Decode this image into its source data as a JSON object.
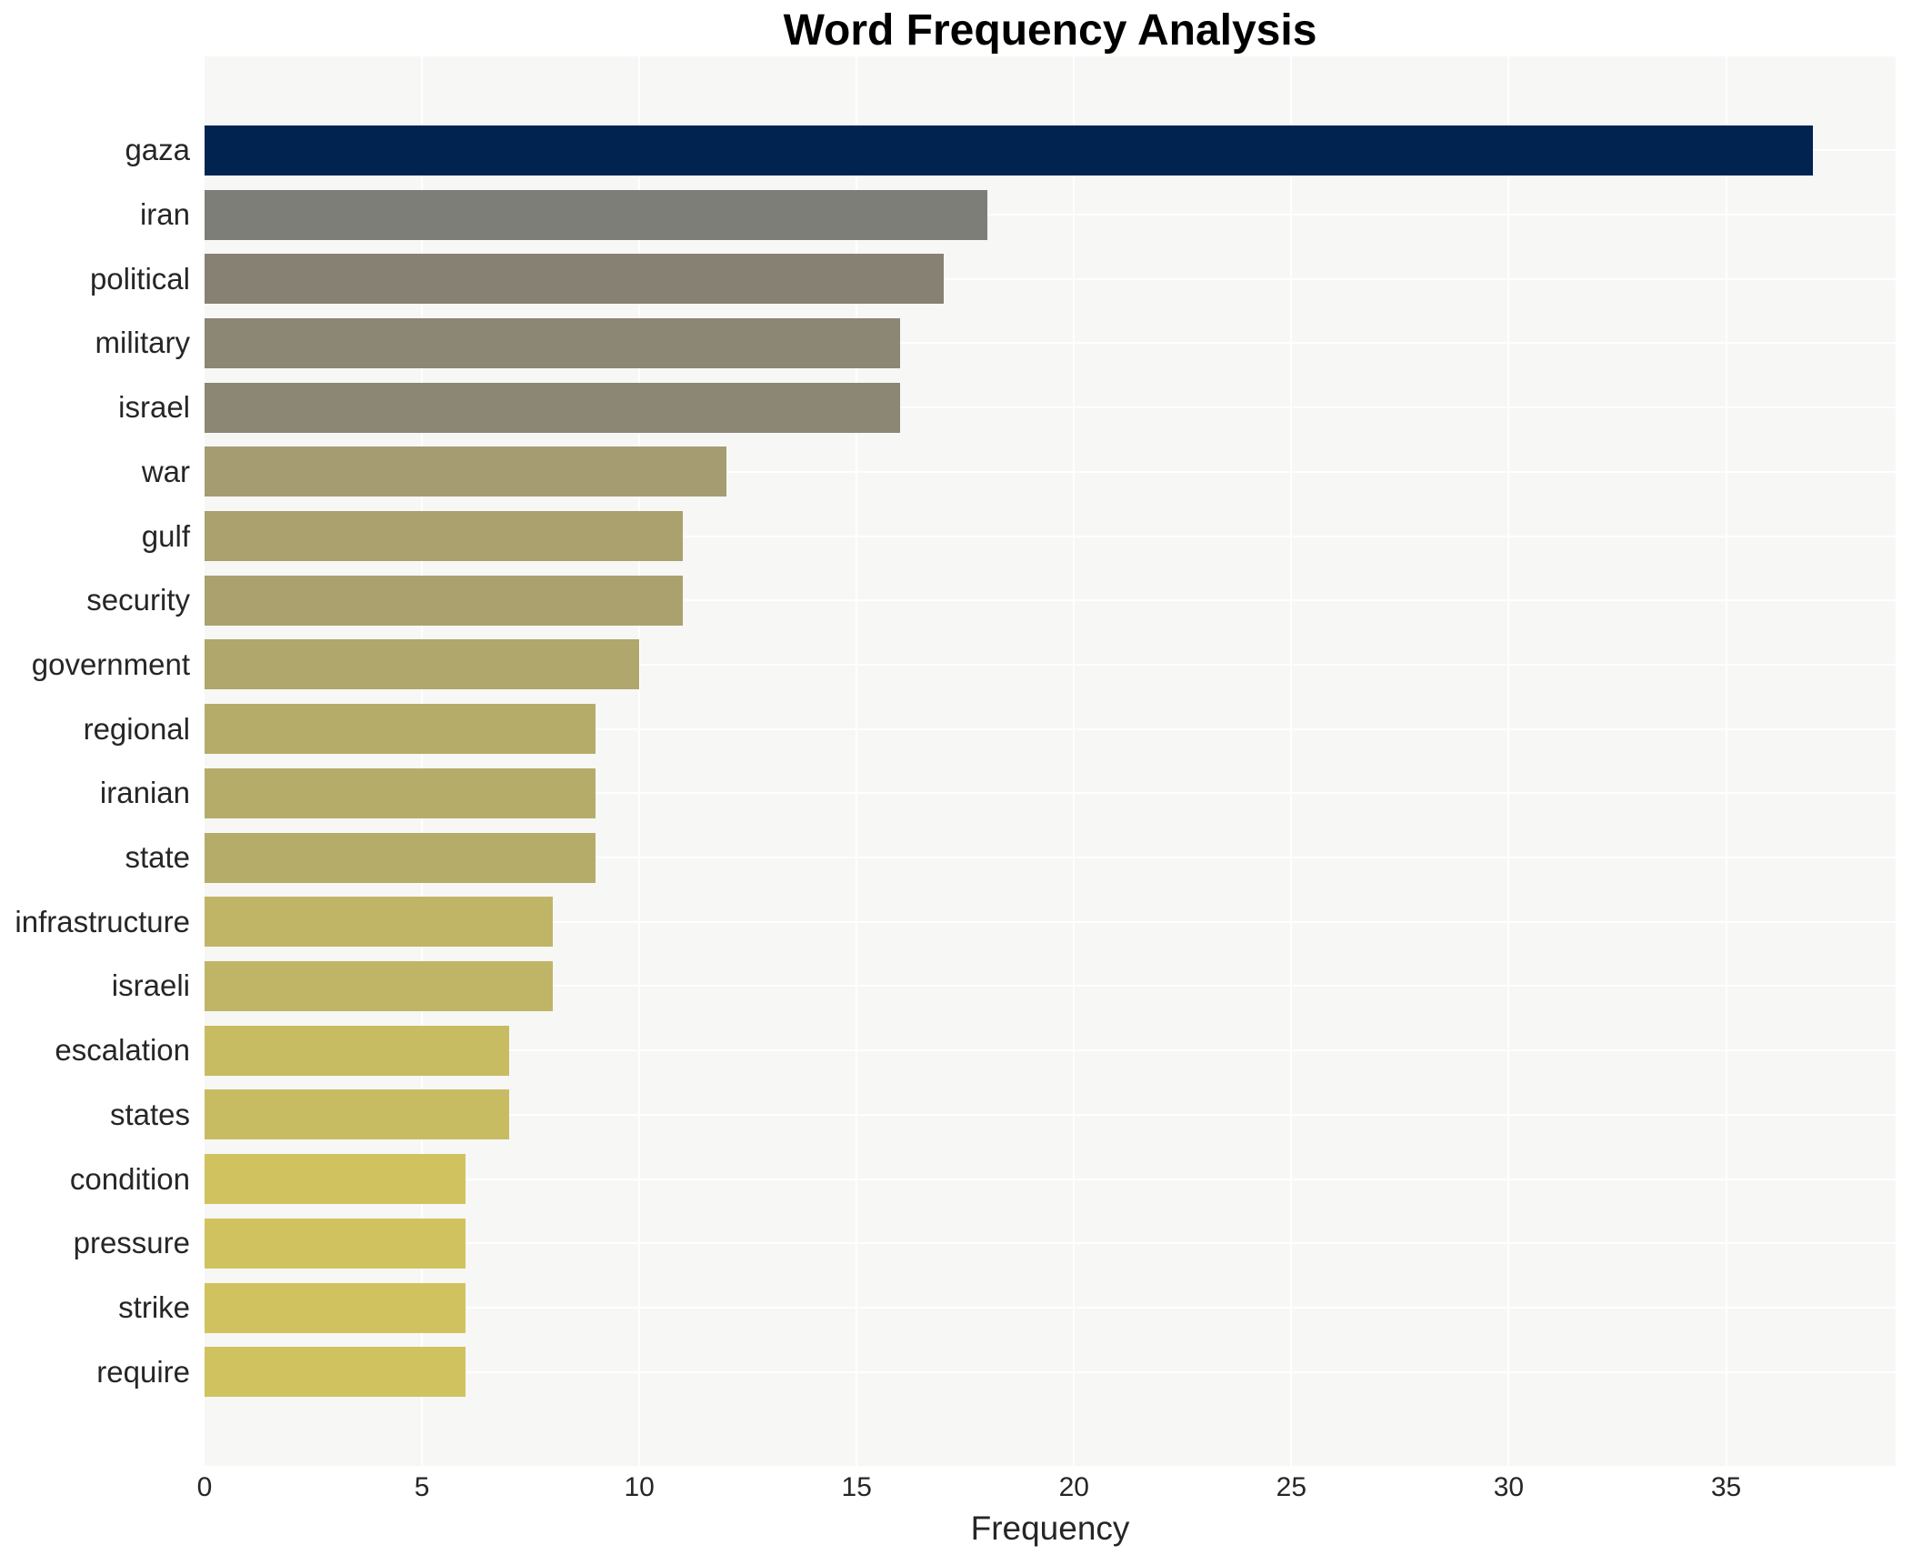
{
  "chart_data": {
    "type": "bar",
    "orientation": "horizontal",
    "title": "Word Frequency Analysis",
    "xlabel": "Frequency",
    "ylabel": "",
    "categories": [
      "gaza",
      "iran",
      "political",
      "military",
      "israel",
      "war",
      "gulf",
      "security",
      "government",
      "regional",
      "iranian",
      "state",
      "infrastructure",
      "israeli",
      "escalation",
      "states",
      "condition",
      "pressure",
      "strike",
      "require"
    ],
    "values": [
      37,
      18,
      17,
      16,
      16,
      12,
      11,
      11,
      10,
      9,
      9,
      9,
      8,
      8,
      7,
      7,
      6,
      6,
      6,
      6
    ],
    "bar_colors": [
      "#00234f",
      "#7e7e79",
      "#868172",
      "#8c8674",
      "#8c8674",
      "#a59c71",
      "#aaa16e",
      "#aaa16e",
      "#b0a76c",
      "#b6ac6a",
      "#b6ac6a",
      "#b6ac6a",
      "#c0b566",
      "#c0b566",
      "#c8bc63",
      "#c8bc63",
      "#d0c35f",
      "#d0c35f",
      "#d0c35f",
      "#d0c35f"
    ],
    "xticks": [
      0,
      5,
      10,
      15,
      20,
      25,
      30,
      35
    ],
    "xlim": [
      0,
      38.9
    ],
    "grid": "white gridlines on light gray panel, vertical at x ticks and horizontal at category centers",
    "legend": "none",
    "colors": {
      "plot_background": "#f7f7f6",
      "gridline": "#ffffff",
      "tick_text": "#262626",
      "title_text": "#000000",
      "top_bar_accent": "#00234f"
    }
  }
}
